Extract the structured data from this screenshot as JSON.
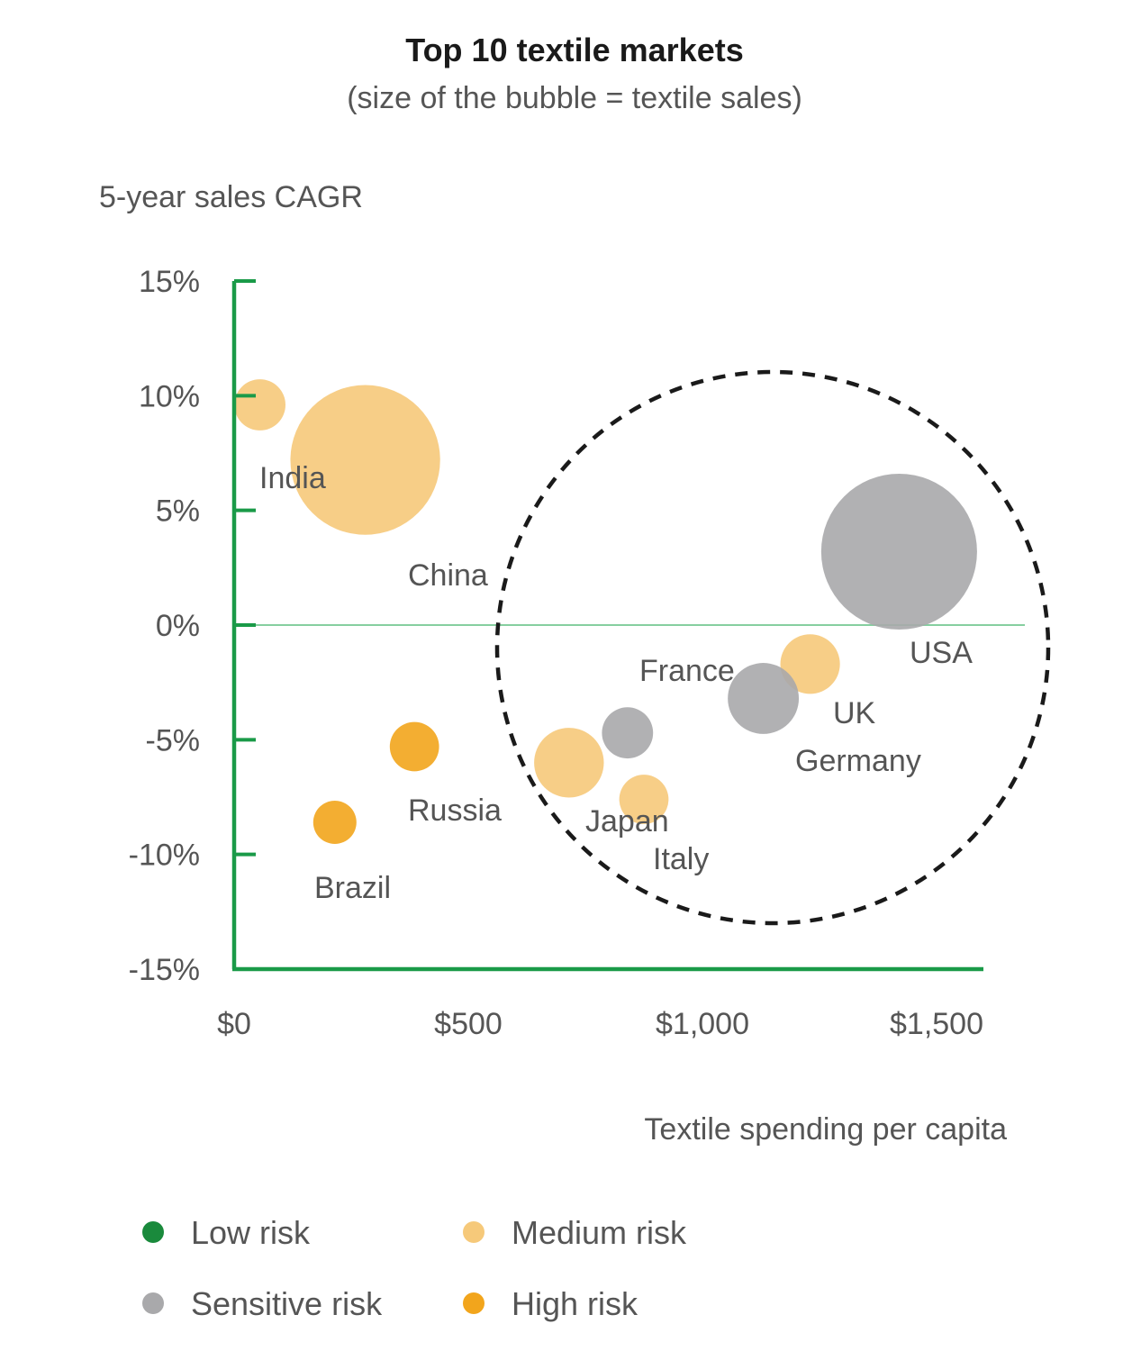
{
  "chart_data": {
    "type": "scatter",
    "title": "Top 10 textile markets",
    "subtitle": "(size of the bubble = textile sales)",
    "ylabel": "5-year sales CAGR",
    "xlabel": "Textile spending per capita",
    "xlim": [
      0,
      1600
    ],
    "ylim": [
      -15,
      15
    ],
    "x_ticks": [
      {
        "value": 0,
        "label": "$0"
      },
      {
        "value": 500,
        "label": "$500"
      },
      {
        "value": 1000,
        "label": "$1,000"
      },
      {
        "value": 1500,
        "label": "$1,500"
      }
    ],
    "y_ticks": [
      {
        "value": 15,
        "label": "15%"
      },
      {
        "value": 10,
        "label": "10%"
      },
      {
        "value": 5,
        "label": "5%"
      },
      {
        "value": 0,
        "label": "0%"
      },
      {
        "value": -5,
        "label": "-5%"
      },
      {
        "value": -10,
        "label": "-10%"
      },
      {
        "value": -15,
        "label": "-15%"
      }
    ],
    "colors": {
      "low": "#1a8a3c",
      "medium": "#f6c97a",
      "sensitive": "#a9a9ab",
      "high": "#f2a51c",
      "axis": "#1a9a48",
      "zero_line": "#86cfa0"
    },
    "points": [
      {
        "name": "India",
        "x": 55,
        "y": 9.6,
        "size": 1.4,
        "risk": "medium"
      },
      {
        "name": "China",
        "x": 280,
        "y": 7.2,
        "size": 12,
        "risk": "medium"
      },
      {
        "name": "USA",
        "x": 1420,
        "y": 3.2,
        "size": 13,
        "risk": "sensitive"
      },
      {
        "name": "UK",
        "x": 1230,
        "y": -1.7,
        "size": 1.9,
        "risk": "medium"
      },
      {
        "name": "Germany",
        "x": 1130,
        "y": -3.2,
        "size": 2.7,
        "risk": "sensitive"
      },
      {
        "name": "France",
        "x": 840,
        "y": -4.7,
        "size": 1.4,
        "risk": "sensitive"
      },
      {
        "name": "Italy",
        "x": 715,
        "y": -6.0,
        "size": 2.6,
        "risk": "medium"
      },
      {
        "name": "Japan",
        "x": 875,
        "y": -7.6,
        "size": 1.3,
        "risk": "medium"
      },
      {
        "name": "Russia",
        "x": 385,
        "y": -5.3,
        "size": 1.3,
        "risk": "high"
      },
      {
        "name": "Brazil",
        "x": 215,
        "y": -8.6,
        "size": 1.0,
        "risk": "high"
      }
    ],
    "legend": [
      {
        "label": "Low risk",
        "risk": "low"
      },
      {
        "label": "Medium risk",
        "risk": "medium"
      },
      {
        "label": "Sensitive risk",
        "risk": "sensitive"
      },
      {
        "label": "High risk",
        "risk": "high"
      }
    ]
  }
}
